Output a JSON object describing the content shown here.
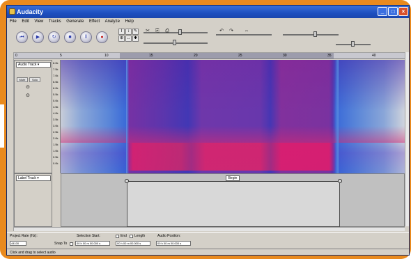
{
  "window": {
    "title": "Audacity"
  },
  "menu": [
    "File",
    "Edit",
    "View",
    "Tracks",
    "Generate",
    "Effect",
    "Analyze",
    "Help"
  ],
  "transport": {
    "rewind_icon": "skip-to-start-icon",
    "play_icon": "play-icon",
    "loop_icon": "loop-icon",
    "stop_icon": "stop-icon",
    "pause_icon": "pause-icon",
    "record_icon": "record-icon",
    "glyphs": {
      "rewind": "⏮",
      "play": "▶",
      "loop": "↻",
      "stop": "■",
      "pause": "‖",
      "record": "●"
    }
  },
  "tools": {
    "select": "I",
    "envelope": "↕",
    "draw": "✎",
    "zoom": "⊕",
    "timeshift": "↔",
    "multi": "✱"
  },
  "edit_toolbar": {
    "cut": "✂",
    "copy": "⎘",
    "paste": "⎙",
    "undo": "↶",
    "redo": "↷",
    "fit": "⇔"
  },
  "ruler": {
    "ticks": [
      "0",
      "5",
      "10",
      "15",
      "20",
      "25",
      "30",
      "35",
      "40"
    ]
  },
  "track1": {
    "name": "Audio Track",
    "mute": "Mute",
    "solo": "Solo",
    "scale": [
      "8.0k",
      "7.5k",
      "7.0k",
      "6.5k",
      "6.0k",
      "5.5k",
      "5.0k",
      "4.5k",
      "4.0k",
      "3.5k",
      "3.0k",
      "2.5k",
      "2.0k",
      "1.5k",
      "1.0k",
      "0.5k",
      "0.0k"
    ]
  },
  "track2": {
    "name": "Label Track",
    "label": "Begin"
  },
  "bottom": {
    "project_rate_label": "Project Rate (Hz):",
    "project_rate_value": "44100",
    "snap_label": "Snap To",
    "selection_start_label": "Selection Start:",
    "end_label": "End",
    "length_label": "Length",
    "audio_position_label": "Audio Position:",
    "selection_start_value": "00 h 00 m 00.000 s",
    "selection_end_value": "00 h 00 m 00.000 s",
    "audio_position_value": "00 h 00 m 00.000 s"
  },
  "status": "Click and drag to select audio",
  "colors": {
    "frame": "#e98a1e",
    "titlebar": "#1d4fc0",
    "spectrogram_low": "#e02468",
    "spectrogram_mid": "#3a3ab8"
  }
}
